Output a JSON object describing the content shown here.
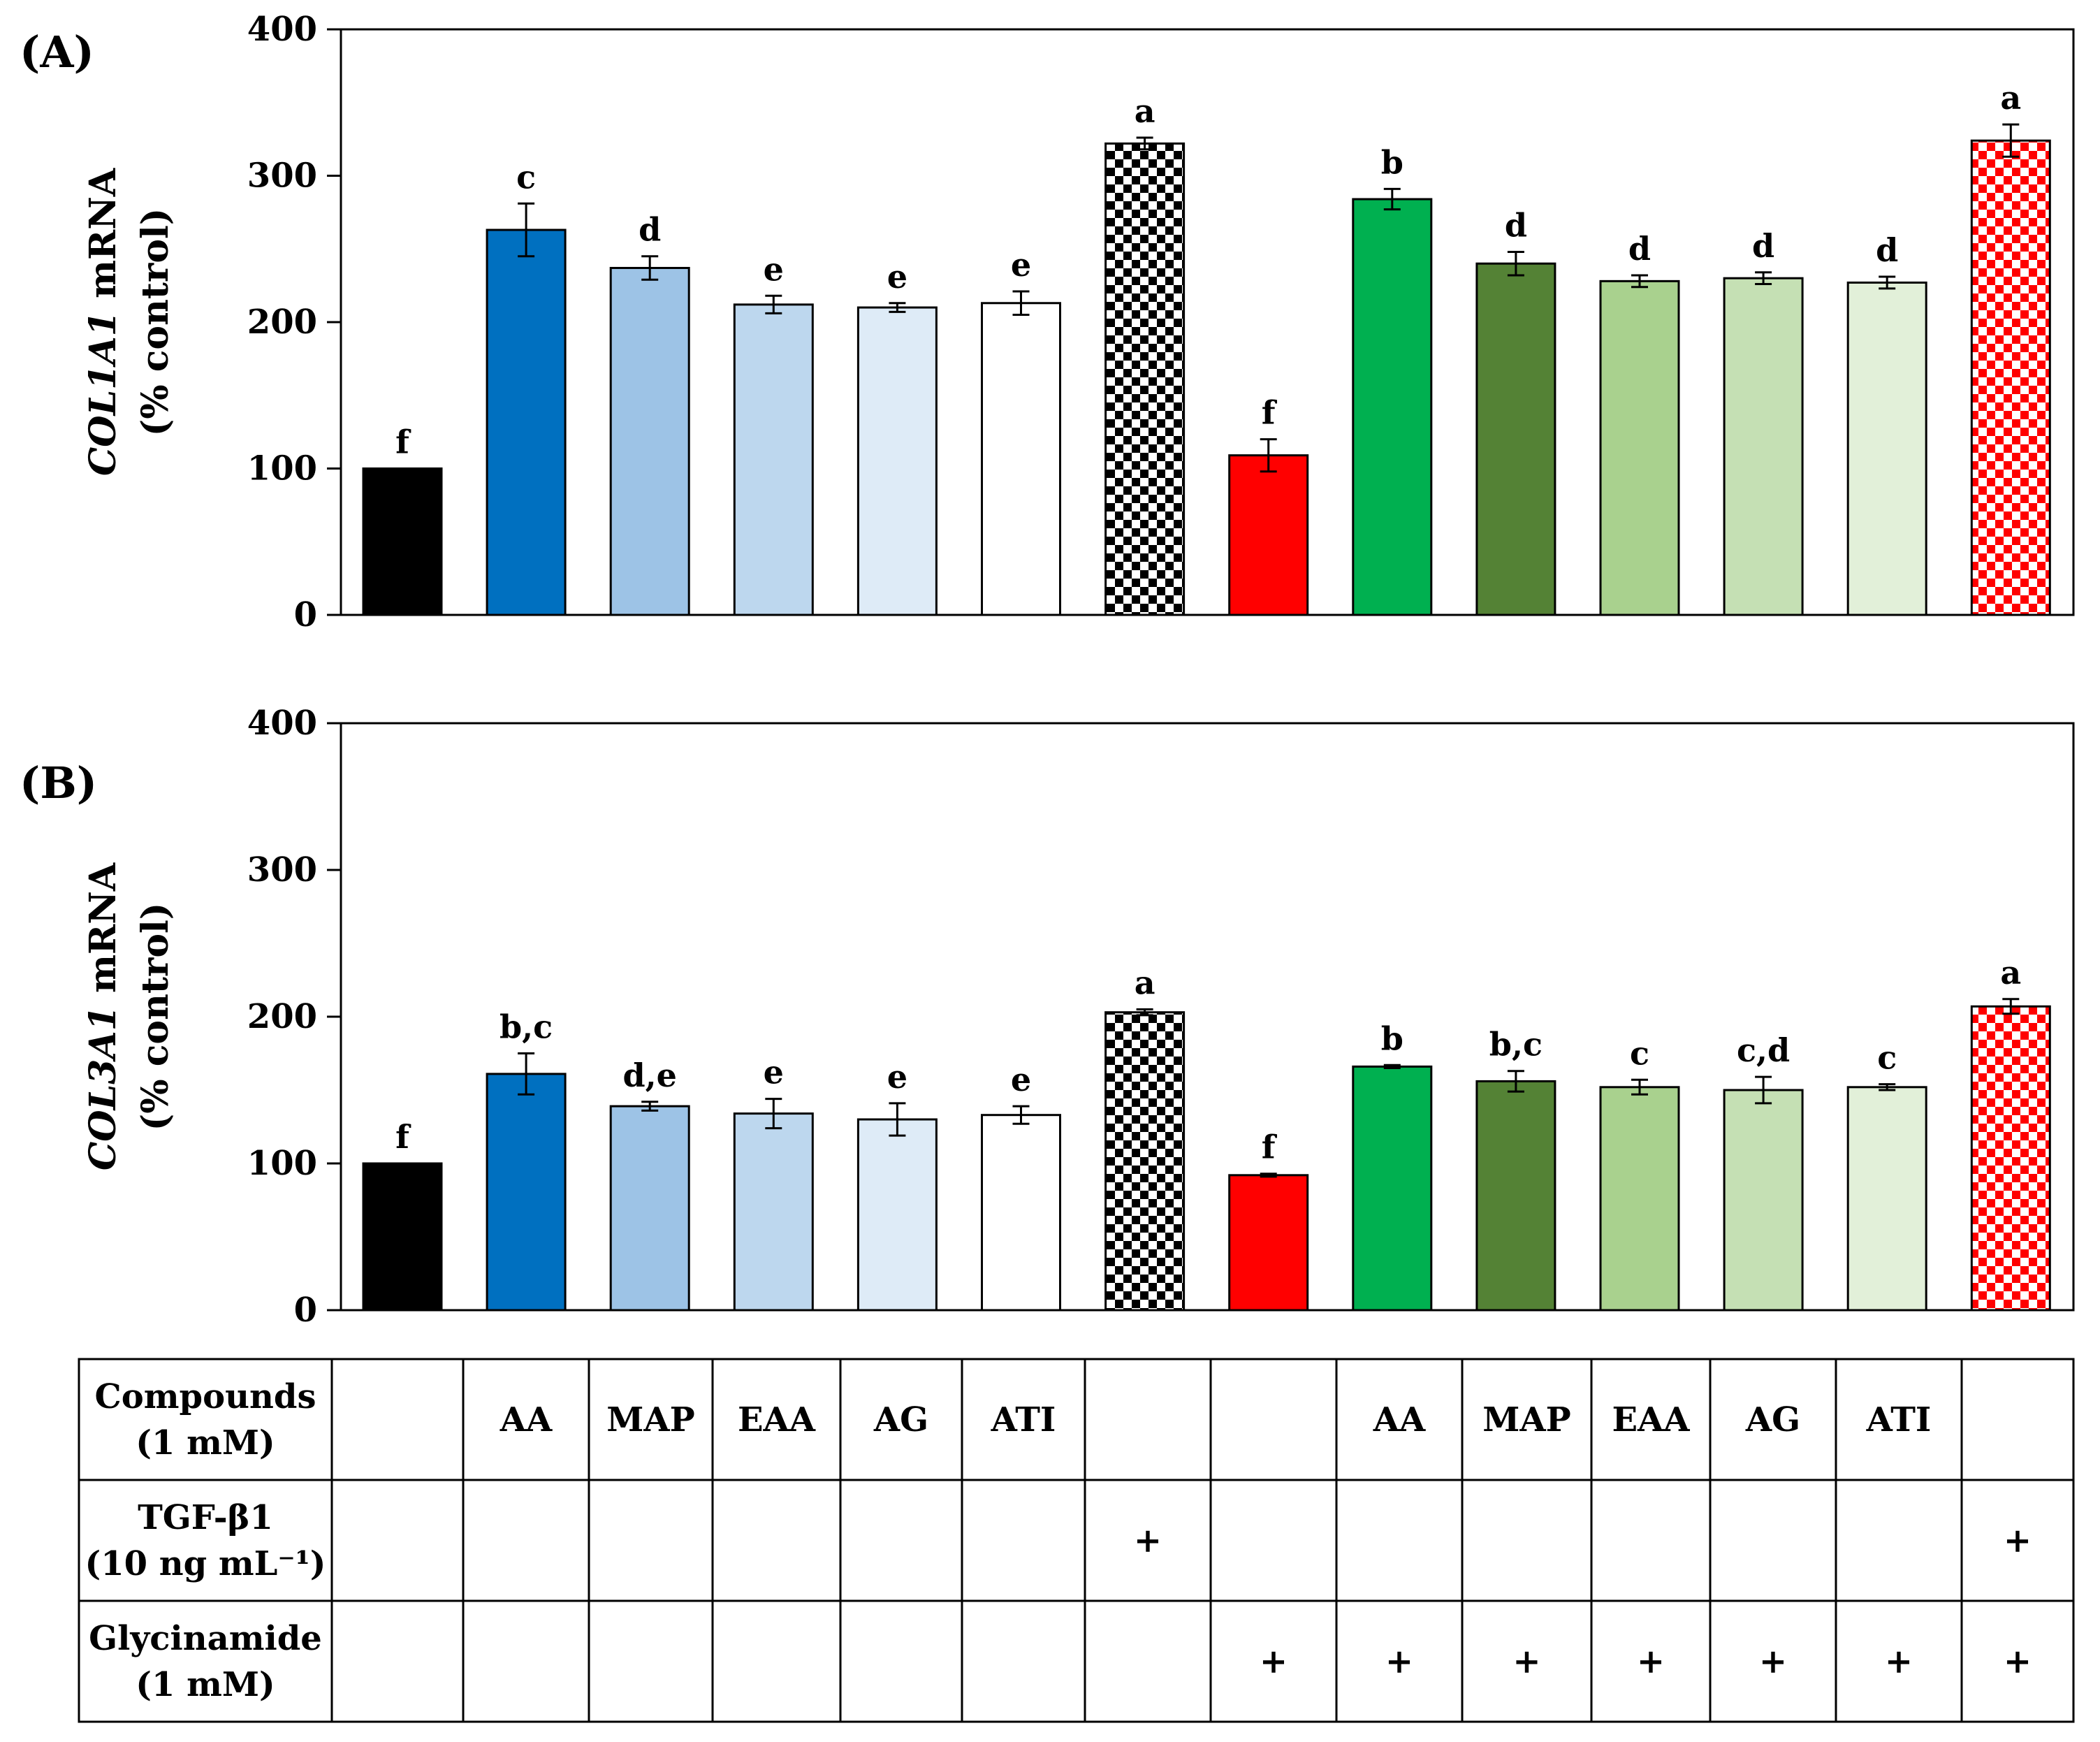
{
  "figure": {
    "tick_values": [
      0,
      100,
      200,
      300,
      400
    ]
  },
  "chart_data": [
    {
      "type": "bar",
      "panel": "(A)",
      "ylabel_gene": "COL1A1",
      "ylabel_suffix": " mRNA",
      "ylabel_line2": "(% control)",
      "ylim": [
        0,
        400
      ],
      "yticks": [
        0,
        100,
        200,
        300,
        400
      ],
      "values": [
        100,
        263,
        237,
        212,
        210,
        213,
        322,
        109,
        284,
        240,
        228,
        230,
        227,
        324
      ],
      "errors": [
        0,
        18,
        8,
        6,
        3,
        8,
        4,
        11,
        7,
        8,
        4,
        4,
        4,
        11
      ],
      "significance": [
        "f",
        "c",
        "d",
        "e",
        "e",
        "e",
        "a",
        "f",
        "b",
        "d",
        "d",
        "d",
        "d",
        "a"
      ]
    },
    {
      "type": "bar",
      "panel": "(B)",
      "ylabel_gene": "COL3A1",
      "ylabel_suffix": " mRNA",
      "ylabel_line2": "(% control)",
      "ylim": [
        0,
        400
      ],
      "yticks": [
        0,
        100,
        200,
        300,
        400
      ],
      "values": [
        100,
        161,
        139,
        134,
        130,
        133,
        203,
        92,
        166,
        156,
        152,
        150,
        152,
        207
      ],
      "errors": [
        0,
        14,
        3,
        10,
        11,
        6,
        2,
        1,
        1,
        7,
        5,
        9,
        2,
        5
      ],
      "significance": [
        "f",
        "b,c",
        "d,e",
        "e",
        "e",
        "e",
        "a",
        "f",
        "b",
        "b,c",
        "c",
        "c,d",
        "c",
        "a"
      ]
    }
  ],
  "series_style": {
    "fills": [
      "#000000",
      "#0070C0",
      "#9DC3E6",
      "#BDD7EE",
      "#DEEBF7",
      "#FFFFFF",
      "checker-black",
      "#FF0000",
      "#00B050",
      "#548235",
      "#A9D18E",
      "#C5E0B4",
      "#E2F0D9",
      "checker-red"
    ]
  },
  "table": {
    "rows": [
      {
        "label_line1": "Compounds",
        "label_line2": "(1 mM)",
        "cells": [
          "",
          "AA",
          "MAP",
          "EAA",
          "AG",
          "ATI",
          "",
          "",
          "AA",
          "MAP",
          "EAA",
          "AG",
          "ATI",
          ""
        ]
      },
      {
        "label_line1": "TGF-β1",
        "label_line2": "(10 ng mL⁻¹)",
        "cells": [
          "",
          "",
          "",
          "",
          "",
          "",
          "+",
          "",
          "",
          "",
          "",
          "",
          "",
          "+"
        ]
      },
      {
        "label_line1": "Glycinamide",
        "label_line2": "(1 mM)",
        "cells": [
          "",
          "",
          "",
          "",
          "",
          "",
          "",
          "+",
          "+",
          "+",
          "+",
          "+",
          "+",
          "+"
        ]
      }
    ]
  }
}
